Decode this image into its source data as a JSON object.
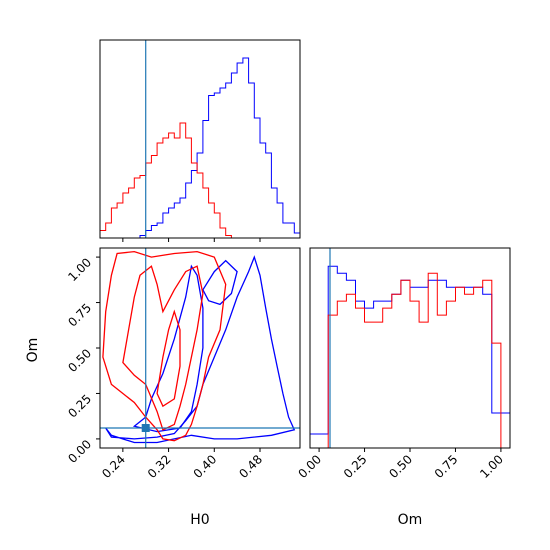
{
  "chart_data": [
    {
      "type": "histogram",
      "panel": "H0 marginal",
      "xlabel": "",
      "ylabel": "",
      "xlim": [
        0.2,
        0.55
      ],
      "truth_line": 0.28,
      "series": [
        {
          "name": "",
          "color": "#0000ff",
          "bin_edges": [
            0.2,
            0.21,
            0.22,
            0.23,
            0.24,
            0.25,
            0.26,
            0.27,
            0.28,
            0.29,
            0.3,
            0.31,
            0.32,
            0.33,
            0.34,
            0.35,
            0.36,
            0.37,
            0.38,
            0.39,
            0.4,
            0.41,
            0.42,
            0.43,
            0.44,
            0.45,
            0.46,
            0.47,
            0.48,
            0.49,
            0.5,
            0.51,
            0.52,
            0.53,
            0.54,
            0.55
          ],
          "counts": [
            0,
            0,
            0,
            0,
            0,
            0,
            0,
            1,
            3,
            5,
            6,
            10,
            12,
            14,
            16,
            22,
            27,
            34,
            47,
            57,
            58,
            60,
            62,
            66,
            70,
            72,
            62,
            48,
            38,
            34,
            20,
            14,
            6,
            6,
            2
          ]
        },
        {
          "name": "",
          "color": "#ff0000",
          "bin_edges": [
            0.2,
            0.21,
            0.22,
            0.23,
            0.24,
            0.25,
            0.26,
            0.27,
            0.28,
            0.29,
            0.3,
            0.31,
            0.32,
            0.33,
            0.34,
            0.35,
            0.36,
            0.37,
            0.38,
            0.39,
            0.4,
            0.41,
            0.42,
            0.43
          ],
          "counts": [
            3,
            6,
            12,
            14,
            18,
            20,
            24,
            25,
            30,
            33,
            38,
            40,
            42,
            40,
            46,
            40,
            30,
            26,
            20,
            14,
            10,
            4,
            1
          ]
        }
      ]
    },
    {
      "type": "contour",
      "panel": "H0 vs Om joint",
      "xlabel": "H0",
      "ylabel": "Om",
      "xlim": [
        0.2,
        0.55
      ],
      "ylim": [
        -0.05,
        1.05
      ],
      "xticks": [
        "0.24",
        "0.32",
        "0.40",
        "0.48"
      ],
      "yticks": [
        "0.00",
        "0.25",
        "0.50",
        "0.75",
        "1.00"
      ],
      "truth_point": [
        0.28,
        0.06
      ],
      "series": [
        {
          "name": "",
          "color": "#0000ff",
          "contours": [
            [
              [
                0.21,
                0.06
              ],
              [
                0.22,
                0.01
              ],
              [
                0.26,
                0.0
              ],
              [
                0.3,
                0.01
              ],
              [
                0.33,
                0.03
              ],
              [
                0.35,
                0.1
              ],
              [
                0.37,
                0.18
              ],
              [
                0.38,
                0.3
              ],
              [
                0.4,
                0.45
              ],
              [
                0.42,
                0.6
              ],
              [
                0.44,
                0.78
              ],
              [
                0.46,
                0.92
              ],
              [
                0.47,
                1.0
              ],
              [
                0.48,
                0.9
              ],
              [
                0.49,
                0.72
              ],
              [
                0.5,
                0.55
              ],
              [
                0.51,
                0.4
              ],
              [
                0.52,
                0.25
              ],
              [
                0.53,
                0.12
              ],
              [
                0.54,
                0.05
              ],
              [
                0.5,
                0.02
              ],
              [
                0.44,
                0.0
              ],
              [
                0.4,
                0.0
              ],
              [
                0.36,
                0.02
              ],
              [
                0.33,
                0.0
              ],
              [
                0.3,
                -0.02
              ],
              [
                0.26,
                -0.02
              ],
              [
                0.22,
                0.02
              ]
            ],
            [
              [
                0.26,
                0.07
              ],
              [
                0.28,
                0.12
              ],
              [
                0.29,
                0.22
              ],
              [
                0.31,
                0.36
              ],
              [
                0.33,
                0.55
              ],
              [
                0.35,
                0.78
              ],
              [
                0.36,
                0.95
              ],
              [
                0.37,
                0.9
              ],
              [
                0.38,
                0.72
              ],
              [
                0.38,
                0.5
              ],
              [
                0.37,
                0.3
              ],
              [
                0.36,
                0.15
              ],
              [
                0.34,
                0.06
              ],
              [
                0.3,
                0.04
              ]
            ],
            [
              [
                0.38,
                0.82
              ],
              [
                0.4,
                0.92
              ],
              [
                0.42,
                0.98
              ],
              [
                0.44,
                0.92
              ],
              [
                0.43,
                0.8
              ],
              [
                0.41,
                0.74
              ],
              [
                0.39,
                0.76
              ]
            ]
          ]
        },
        {
          "name": "",
          "color": "#ff0000",
          "contours": [
            [
              [
                0.205,
                0.45
              ],
              [
                0.21,
                0.7
              ],
              [
                0.22,
                0.9
              ],
              [
                0.23,
                1.02
              ],
              [
                0.26,
                1.03
              ],
              [
                0.29,
                1.0
              ],
              [
                0.33,
                1.02
              ],
              [
                0.37,
                1.03
              ],
              [
                0.4,
                1.0
              ],
              [
                0.42,
                0.85
              ],
              [
                0.41,
                0.6
              ],
              [
                0.39,
                0.45
              ],
              [
                0.38,
                0.3
              ],
              [
                0.37,
                0.18
              ],
              [
                0.36,
                0.08
              ],
              [
                0.35,
                0.02
              ],
              [
                0.33,
                -0.01
              ],
              [
                0.31,
                0.0
              ],
              [
                0.3,
                0.05
              ],
              [
                0.28,
                0.12
              ],
              [
                0.26,
                0.2
              ],
              [
                0.24,
                0.25
              ],
              [
                0.22,
                0.3
              ]
            ],
            [
              [
                0.24,
                0.42
              ],
              [
                0.25,
                0.6
              ],
              [
                0.26,
                0.78
              ],
              [
                0.27,
                0.9
              ],
              [
                0.29,
                0.95
              ],
              [
                0.3,
                0.85
              ],
              [
                0.31,
                0.7
              ],
              [
                0.33,
                0.82
              ],
              [
                0.35,
                0.92
              ],
              [
                0.37,
                0.95
              ],
              [
                0.38,
                0.8
              ],
              [
                0.37,
                0.6
              ],
              [
                0.36,
                0.45
              ],
              [
                0.35,
                0.3
              ],
              [
                0.34,
                0.18
              ],
              [
                0.33,
                0.08
              ],
              [
                0.31,
                0.05
              ],
              [
                0.3,
                0.15
              ],
              [
                0.28,
                0.3
              ],
              [
                0.26,
                0.35
              ]
            ],
            [
              [
                0.3,
                0.25
              ],
              [
                0.31,
                0.45
              ],
              [
                0.32,
                0.6
              ],
              [
                0.33,
                0.7
              ],
              [
                0.34,
                0.6
              ],
              [
                0.34,
                0.4
              ],
              [
                0.33,
                0.22
              ],
              [
                0.31,
                0.18
              ]
            ]
          ]
        }
      ]
    },
    {
      "type": "histogram",
      "panel": "Om marginal",
      "xlabel": "Om",
      "ylabel": "",
      "xlim": [
        -0.05,
        1.05
      ],
      "xticks": [
        "0.00",
        "0.25",
        "0.50",
        "0.75",
        "1.00"
      ],
      "truth_line": 0.06,
      "series": [
        {
          "name": "",
          "color": "#0000ff",
          "bin_edges": [
            -0.05,
            0.0,
            0.05,
            0.1,
            0.15,
            0.2,
            0.25,
            0.3,
            0.35,
            0.4,
            0.45,
            0.5,
            0.55,
            0.6,
            0.65,
            0.7,
            0.75,
            0.8,
            0.85,
            0.9,
            0.95,
            1.0,
            1.05
          ],
          "counts": [
            2,
            2,
            26,
            25,
            24,
            21,
            20,
            21,
            21,
            22,
            24,
            23,
            23,
            24,
            24,
            23,
            23,
            23,
            23,
            22,
            5,
            5
          ]
        },
        {
          "name": "",
          "color": "#ff0000",
          "bin_edges": [
            0.0,
            0.05,
            0.1,
            0.15,
            0.2,
            0.25,
            0.3,
            0.35,
            0.4,
            0.45,
            0.5,
            0.55,
            0.6,
            0.65,
            0.7,
            0.75,
            0.8,
            0.85,
            0.9,
            0.95,
            1.0
          ],
          "counts": [
            0,
            19,
            21,
            22,
            20,
            18,
            18,
            20,
            22,
            24,
            21,
            18,
            25,
            19,
            21,
            23,
            22,
            23,
            24,
            15
          ]
        }
      ]
    }
  ]
}
